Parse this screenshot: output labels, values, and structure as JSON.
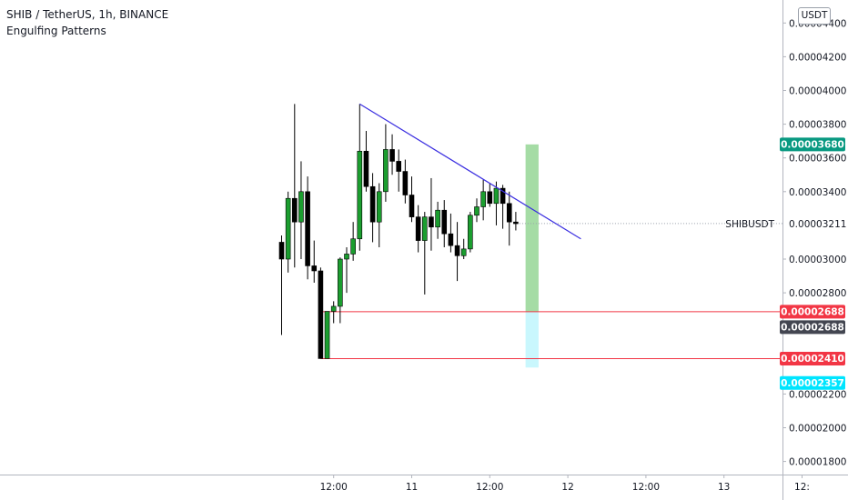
{
  "header": {
    "symbol_line": "SHIB / TetherUS, 1h, BINANCE",
    "indicator": "Engulfing Patterns"
  },
  "price_scale": {
    "currency_button": "USDT",
    "ticks": [
      {
        "label": "0.00004400",
        "value": 4.4e-05
      },
      {
        "label": "0.00004200",
        "value": 4.2e-05
      },
      {
        "label": "0.00004000",
        "value": 4e-05
      },
      {
        "label": "0.00003800",
        "value": 3.8e-05
      },
      {
        "label": "0.00003600",
        "value": 3.6e-05
      },
      {
        "label": "0.00003400",
        "value": 3.4e-05
      },
      {
        "label": "0.00003000",
        "value": 3e-05
      },
      {
        "label": "0.00002800",
        "value": 2.8e-05
      },
      {
        "label": "0.00002200",
        "value": 2.2e-05
      },
      {
        "label": "0.00002000",
        "value": 2e-05
      },
      {
        "label": "0.00001800",
        "value": 1.8e-05
      }
    ],
    "tags": [
      {
        "label": "0.00003680",
        "value": 3.68e-05,
        "bg": "#089981",
        "fg": "#ffffff"
      },
      {
        "label": "0.00002688",
        "value": 2.688e-05,
        "bg": "#f23645",
        "fg": "#ffffff"
      },
      {
        "label": "0.00002688",
        "value": 2.688e-05,
        "bg": "#434651",
        "fg": "#ffffff",
        "stack": 1
      },
      {
        "label": "0.00002410",
        "value": 2.41e-05,
        "bg": "#f23645",
        "fg": "#ffffff"
      },
      {
        "label": "0.00002357",
        "value": 2.357e-05,
        "bg": "#00e5ff",
        "fg": "#131722",
        "stack": 1
      }
    ],
    "symbol_tag": {
      "name": "SHIBUSDT",
      "label": "0.00003211",
      "value": 3.211e-05
    }
  },
  "time_scale": {
    "labels": [
      {
        "label": "12:00",
        "t": 8
      },
      {
        "label": "11",
        "t": 20
      },
      {
        "label": "12:00",
        "t": 32
      },
      {
        "label": "12",
        "t": 44
      },
      {
        "label": "12:00",
        "t": 56
      },
      {
        "label": "13",
        "t": 68
      },
      {
        "label": "12:",
        "t": 80
      }
    ]
  },
  "colors": {
    "up_body": "#1b9e2f",
    "down_body": "#000000",
    "outline": "#000000",
    "trendline": "#3b2fe0",
    "hline": "#f23645",
    "target_zone": "#a5dca5",
    "stop_zone": "#c9f7fd"
  },
  "chart_data": {
    "type": "candlestick",
    "symbol": "SHIBUSDT",
    "interval": "1h",
    "x_unit": "hourly bar index",
    "ohlc": [
      [
        0,
        3.1e-05,
        3.14e-05,
        2.55e-05,
        3e-05
      ],
      [
        1,
        3e-05,
        3.4e-05,
        2.92e-05,
        3.36e-05
      ],
      [
        2,
        3.36e-05,
        3.92e-05,
        2.95e-05,
        3.22e-05
      ],
      [
        3,
        3.22e-05,
        3.58e-05,
        3e-05,
        3.4e-05
      ],
      [
        4,
        3.4e-05,
        3.49e-05,
        2.88e-05,
        2.96e-05
      ],
      [
        5,
        2.96e-05,
        3.11e-05,
        2.86e-05,
        2.93e-05
      ],
      [
        6,
        2.93e-05,
        2.95e-05,
        2.41e-05,
        2.41e-05
      ],
      [
        7,
        2.41e-05,
        2.69e-05,
        2.41e-05,
        2.69e-05
      ],
      [
        8,
        2.69e-05,
        2.75e-05,
        2.62e-05,
        2.72e-05
      ],
      [
        9,
        2.72e-05,
        3.01e-05,
        2.62e-05,
        3e-05
      ],
      [
        10,
        3e-05,
        3.07e-05,
        2.8e-05,
        3.03e-05
      ],
      [
        11,
        3.03e-05,
        3.22e-05,
        2.99e-05,
        3.12e-05
      ],
      [
        12,
        3.12e-05,
        3.92e-05,
        3.05e-05,
        3.64e-05
      ],
      [
        13,
        3.64e-05,
        3.76e-05,
        3.4e-05,
        3.43e-05
      ],
      [
        14,
        3.43e-05,
        3.51e-05,
        3.1e-05,
        3.22e-05
      ],
      [
        15,
        3.22e-05,
        3.45e-05,
        3.07e-05,
        3.4e-05
      ],
      [
        16,
        3.4e-05,
        3.8e-05,
        3.34e-05,
        3.65e-05
      ],
      [
        17,
        3.65e-05,
        3.74e-05,
        3.5e-05,
        3.58e-05
      ],
      [
        18,
        3.58e-05,
        3.65e-05,
        3.4e-05,
        3.52e-05
      ],
      [
        19,
        3.52e-05,
        3.59e-05,
        3.33e-05,
        3.38e-05
      ],
      [
        20,
        3.38e-05,
        3.49e-05,
        3.22e-05,
        3.25e-05
      ],
      [
        21,
        3.25e-05,
        3.32e-05,
        3.04e-05,
        3.11e-05
      ],
      [
        22,
        3.11e-05,
        3.28e-05,
        2.79e-05,
        3.25e-05
      ],
      [
        23,
        3.25e-05,
        3.48e-05,
        3.05e-05,
        3.19e-05
      ],
      [
        24,
        3.19e-05,
        3.34e-05,
        3.12e-05,
        3.29e-05
      ],
      [
        25,
        3.29e-05,
        3.35e-05,
        3.07e-05,
        3.15e-05
      ],
      [
        26,
        3.15e-05,
        3.27e-05,
        3.04e-05,
        3.08e-05
      ],
      [
        27,
        3.08e-05,
        3.22e-05,
        2.87e-05,
        3.02e-05
      ],
      [
        28,
        3.02e-05,
        3.12e-05,
        3e-05,
        3.06e-05
      ],
      [
        29,
        3.06e-05,
        3.28e-05,
        3.04e-05,
        3.26e-05
      ],
      [
        30,
        3.26e-05,
        3.36e-05,
        3.22e-05,
        3.31e-05
      ],
      [
        31,
        3.31e-05,
        3.47e-05,
        3.23e-05,
        3.4e-05
      ],
      [
        32,
        3.4e-05,
        3.45e-05,
        3.31e-05,
        3.33e-05
      ],
      [
        33,
        3.33e-05,
        3.46e-05,
        3.2e-05,
        3.42e-05
      ],
      [
        34,
        3.42e-05,
        3.44e-05,
        3.18e-05,
        3.33e-05
      ],
      [
        35,
        3.33e-05,
        3.4e-05,
        3.08e-05,
        3.22e-05
      ],
      [
        36,
        3.22e-05,
        3.28e-05,
        3.17e-05,
        3.21e-05
      ]
    ],
    "trendline": {
      "from": [
        12,
        3.92e-05
      ],
      "to": [
        46,
        3.12e-05
      ]
    },
    "hlines": [
      {
        "from_t": 6,
        "value": 2.688e-05
      },
      {
        "from_t": 6,
        "value": 2.41e-05
      }
    ],
    "position_tool": {
      "from_t": 37.5,
      "to_t": 39.5,
      "entry": 2.688e-05,
      "target": 3.68e-05,
      "stop": 2.357e-05
    },
    "last_price_line": {
      "from_t": 36,
      "value": 3.211e-05
    }
  }
}
